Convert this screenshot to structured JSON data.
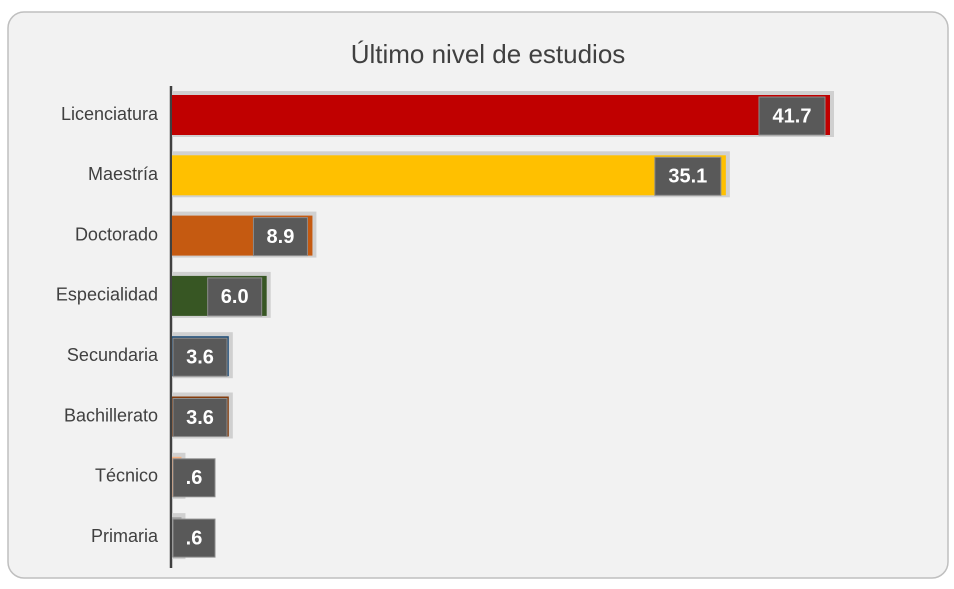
{
  "chart_data": {
    "type": "bar",
    "orientation": "horizontal",
    "title": "Último nivel de estudios",
    "categories": [
      "Licenciatura",
      "Maestría",
      "Doctorado",
      "Especialidad",
      "Secundaria",
      "Bachillerato",
      "Técnico",
      "Primaria"
    ],
    "values": [
      41.7,
      35.1,
      8.9,
      6.0,
      3.6,
      3.6,
      0.6,
      0.6
    ],
    "value_labels": [
      "41.7",
      "35.1",
      "8.9",
      "6.0",
      "3.6",
      "3.6",
      ".6",
      ".6"
    ],
    "colors": [
      "#c00000",
      "#ffc000",
      "#c55a11",
      "#375623",
      "#1f4e79",
      "#843c0c",
      "#f4b183",
      "#a6a6a6"
    ]
  }
}
